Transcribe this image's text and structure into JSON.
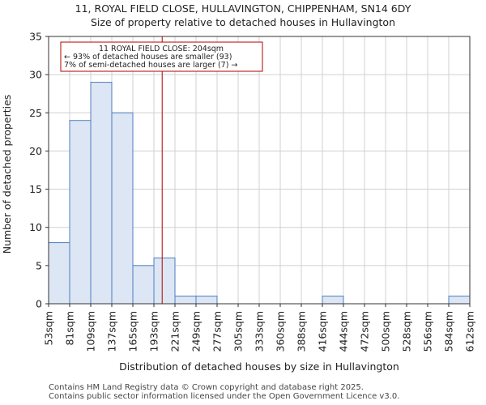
{
  "chart_data": {
    "type": "bar",
    "title_line1": "11, ROYAL FIELD CLOSE, HULLAVINGTON, CHIPPENHAM, SN14 6DY",
    "title_line2": "Size of property relative to detached houses in Hullavington",
    "xlabel": "Distribution of detached houses by size in Hullavington",
    "ylabel": "Number of detached properties",
    "bin_edges": [
      53,
      81,
      109,
      137,
      165,
      193,
      221,
      249,
      277,
      305,
      333,
      360,
      388,
      416,
      444,
      472,
      500,
      528,
      556,
      584,
      612
    ],
    "x_tick_labels": [
      "53sqm",
      "81sqm",
      "109sqm",
      "137sqm",
      "165sqm",
      "193sqm",
      "221sqm",
      "249sqm",
      "277sqm",
      "305sqm",
      "333sqm",
      "360sqm",
      "388sqm",
      "416sqm",
      "444sqm",
      "472sqm",
      "500sqm",
      "528sqm",
      "556sqm",
      "584sqm",
      "612sqm"
    ],
    "values": [
      8,
      24,
      29,
      25,
      5,
      6,
      1,
      1,
      0,
      0,
      0,
      0,
      0,
      1,
      0,
      0,
      0,
      0,
      0,
      1
    ],
    "ylim": [
      0,
      35
    ],
    "y_ticks": [
      0,
      5,
      10,
      15,
      20,
      25,
      30,
      35
    ],
    "marker_value": 204,
    "annotation": [
      "11 ROYAL FIELD CLOSE: 204sqm",
      "← 93% of detached houses are smaller (93)",
      "7% of semi-detached houses are larger (7) →"
    ],
    "colors": {
      "bar_fill": "#dce6f4",
      "bar_edge": "#4f7cc0",
      "marker": "#b30000",
      "grid": "#d0d0d0"
    }
  },
  "footer": {
    "line1": "Contains HM Land Registry data © Crown copyright and database right 2025.",
    "line2": "Contains public sector information licensed under the Open Government Licence v3.0."
  }
}
